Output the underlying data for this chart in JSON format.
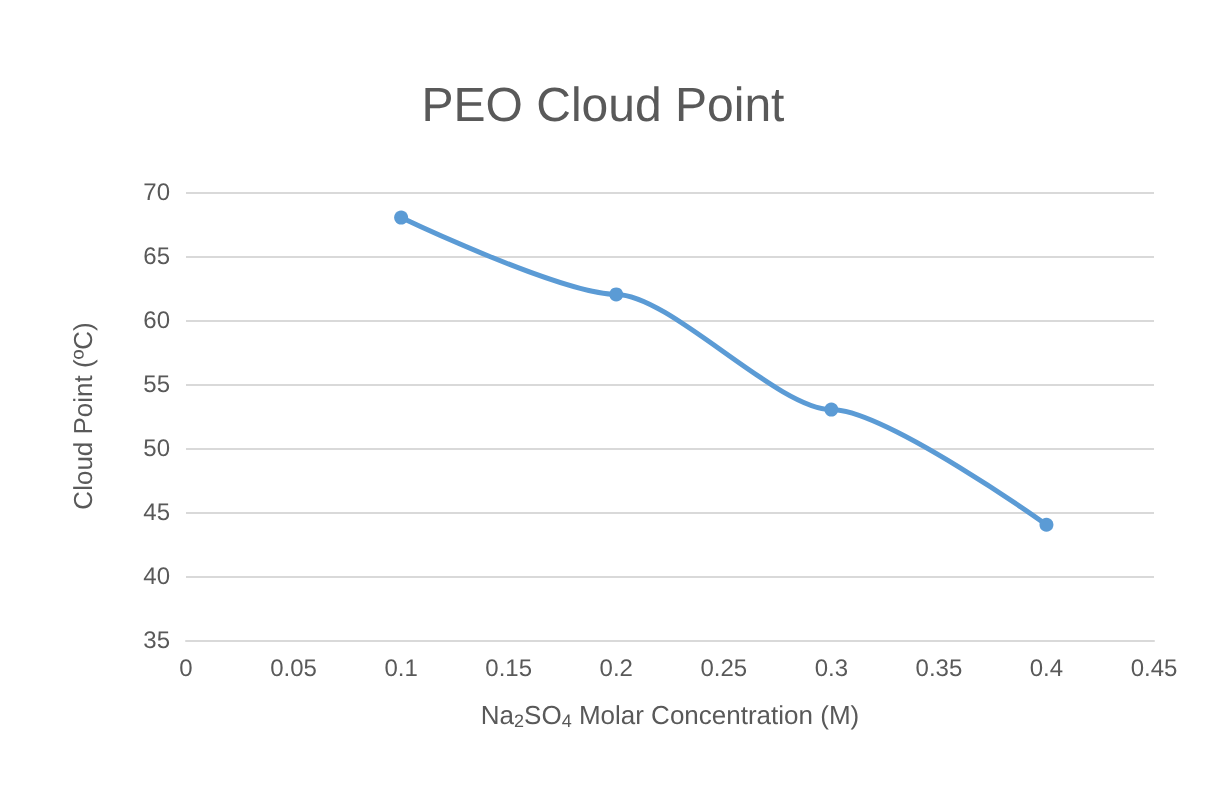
{
  "chart_data": {
    "type": "line",
    "title": "PEO Cloud Point",
    "xlabel": "Na$_{2}$SO$_{4}$ Molar Concentration (M)",
    "ylabel": "Cloud Point (ºC)",
    "x": [
      0.1,
      0.2,
      0.3,
      0.4
    ],
    "series": [
      {
        "color": "#5b9bd5",
        "values": [
          68,
          62,
          53,
          44
        ]
      }
    ],
    "xlim": [
      0,
      0.45
    ],
    "xticks": [
      0,
      0.05,
      0.1,
      0.15,
      0.2,
      0.25,
      0.3,
      0.35,
      0.4,
      0.45
    ],
    "ylim": [
      35,
      70
    ],
    "yticks": [
      35,
      40,
      45,
      50,
      55,
      60,
      65,
      70
    ],
    "grid": "y",
    "marker": "circle",
    "line_style": "solid"
  }
}
